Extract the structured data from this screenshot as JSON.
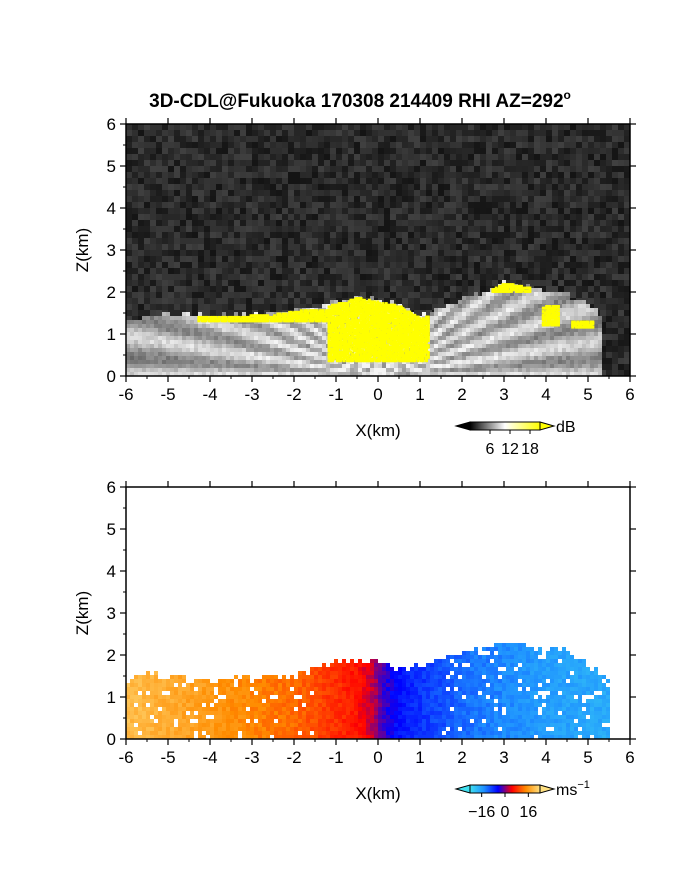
{
  "figure": {
    "title": "3D-CDL@Fukuoka 170308 214409 RHI AZ=292",
    "title_superscript": "o"
  },
  "chart_data": [
    {
      "type": "heatmap",
      "name": "reflectivity-panel",
      "xlabel": "X(km)",
      "ylabel": "Z(km)",
      "xlim": [
        -6,
        6
      ],
      "ylim": [
        0,
        6
      ],
      "xticks": [
        "-6",
        "-5",
        "-4",
        "-3",
        "-2",
        "-1",
        "0",
        "1",
        "2",
        "3",
        "4",
        "5",
        "6"
      ],
      "yticks": [
        "0",
        "1",
        "2",
        "3",
        "4",
        "5",
        "6"
      ],
      "colorbar": {
        "unit": "dB",
        "ticks": [
          "6",
          "12",
          "18"
        ],
        "tick_values": [
          6,
          12,
          18
        ],
        "range": [
          0,
          21
        ],
        "colors": [
          "#000000",
          "#ffffff",
          "#ffff00"
        ]
      },
      "background": "noise",
      "echo_top_km": [
        [
          -6.0,
          1.3
        ],
        [
          -5.5,
          1.45
        ],
        [
          -4.5,
          1.45
        ],
        [
          -3.5,
          1.45
        ],
        [
          -2.5,
          1.5
        ],
        [
          -1.8,
          1.6
        ],
        [
          -1.0,
          1.75
        ],
        [
          -0.5,
          1.9
        ],
        [
          0.0,
          1.8
        ],
        [
          0.5,
          1.7
        ],
        [
          1.0,
          1.4
        ],
        [
          1.5,
          1.6
        ],
        [
          2.0,
          1.8
        ],
        [
          2.5,
          2.0
        ],
        [
          3.0,
          2.25
        ],
        [
          3.5,
          2.15
        ],
        [
          4.0,
          2.05
        ],
        [
          4.5,
          1.95
        ],
        [
          5.0,
          1.7
        ],
        [
          5.3,
          1.5
        ]
      ],
      "strong_echo_regions": [
        {
          "x": [
            -4.3,
            -1.2
          ],
          "z": [
            1.35,
            1.6
          ]
        },
        {
          "x": [
            -1.2,
            1.2
          ],
          "z": [
            0.4,
            1.9
          ]
        },
        {
          "x": [
            2.7,
            3.6
          ],
          "z": [
            2.05,
            2.35
          ]
        },
        {
          "x": [
            3.9,
            4.3
          ],
          "z": [
            1.25,
            1.7
          ]
        },
        {
          "x": [
            4.6,
            5.1
          ],
          "z": [
            1.2,
            1.35
          ]
        }
      ]
    },
    {
      "type": "heatmap",
      "name": "doppler-velocity-panel",
      "xlabel": "X(km)",
      "ylabel": "Z(km)",
      "xlim": [
        -6,
        6
      ],
      "ylim": [
        0,
        6
      ],
      "xticks": [
        "-6",
        "-5",
        "-4",
        "-3",
        "-2",
        "-1",
        "0",
        "1",
        "2",
        "3",
        "4",
        "5",
        "6"
      ],
      "yticks": [
        "0",
        "1",
        "2",
        "3",
        "4",
        "5",
        "6"
      ],
      "colorbar": {
        "unit": "ms",
        "unit_superscript": "−1",
        "ticks": [
          "−16",
          "0",
          "16"
        ],
        "tick_values": [
          -16,
          0,
          16
        ],
        "range": [
          -24,
          24
        ],
        "colors": [
          "#40e0f0",
          "#1e90ff",
          "#0000ff",
          "#ff0000",
          "#ff8c00",
          "#ffe080"
        ]
      },
      "velocity_field_ms": [
        {
          "x": -6.0,
          "v": 20
        },
        {
          "x": -4.0,
          "v": 16
        },
        {
          "x": -2.0,
          "v": 12
        },
        {
          "x": -0.5,
          "v": 6
        },
        {
          "x": -0.1,
          "v": 2
        },
        {
          "x": 0.1,
          "v": -2
        },
        {
          "x": 0.5,
          "v": -6
        },
        {
          "x": 2.0,
          "v": -12
        },
        {
          "x": 4.0,
          "v": -16
        },
        {
          "x": 6.0,
          "v": -18
        }
      ],
      "echo_top_km": [
        [
          -6.0,
          1.25
        ],
        [
          -5.6,
          1.6
        ],
        [
          -5.0,
          1.45
        ],
        [
          -4.0,
          1.4
        ],
        [
          -3.0,
          1.45
        ],
        [
          -2.0,
          1.55
        ],
        [
          -1.6,
          1.7
        ],
        [
          -0.8,
          1.85
        ],
        [
          0.0,
          1.85
        ],
        [
          0.5,
          1.7
        ],
        [
          1.0,
          1.7
        ],
        [
          1.5,
          1.9
        ],
        [
          2.0,
          2.1
        ],
        [
          2.5,
          2.2
        ],
        [
          3.0,
          2.3
        ],
        [
          3.5,
          2.2
        ],
        [
          4.0,
          2.1
        ],
        [
          4.5,
          2.1
        ],
        [
          5.0,
          1.75
        ],
        [
          5.5,
          1.45
        ]
      ]
    }
  ]
}
